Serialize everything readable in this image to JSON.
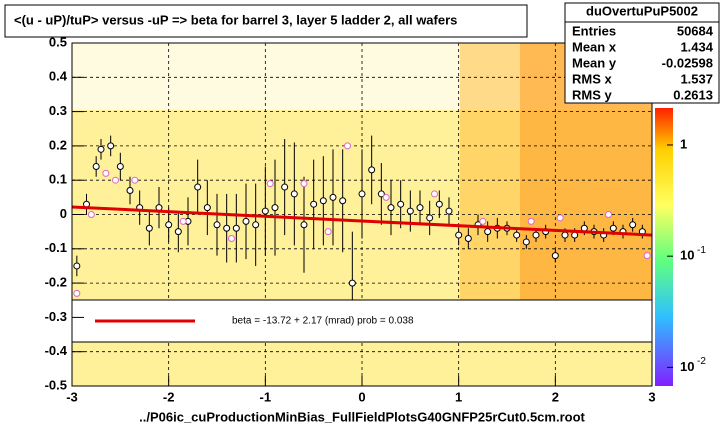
{
  "chart_data": {
    "type": "scatter",
    "title": "<(u - uP)/tuP> versus  -uP => beta for barrel 3, layer 5 ladder 2, all wafers",
    "x_label": "../P06ic_cuProductionMinBias_FullFieldPlotsG40GNFP25rCut0.5cm.root",
    "xlim": [
      -3,
      3
    ],
    "xticks": [
      -3,
      -2,
      -1,
      0,
      1,
      2,
      3
    ],
    "ylim": [
      -0.5,
      0.5
    ],
    "yticks": [
      -0.5,
      -0.4,
      -0.3,
      -0.2,
      -0.1,
      0,
      0.1,
      0.2,
      0.3,
      0.4,
      0.5
    ],
    "grid": true,
    "stats": {
      "name": "duOvertuPuP5002",
      "rows": [
        {
          "label": "Entries",
          "value": 50684
        },
        {
          "label": "Mean x",
          "value": 1.434
        },
        {
          "label": "Mean y",
          "value": -0.02598
        },
        {
          "label": "RMS x",
          "value": 1.537
        },
        {
          "label": "RMS y",
          "value": 0.2613
        }
      ]
    },
    "colorbar": {
      "log": true,
      "zlim": [
        0.0068,
        2.15
      ],
      "ticks": [
        {
          "value": 1,
          "label": "1"
        },
        {
          "value": 0.1,
          "label": "10",
          "exponent": "-1"
        },
        {
          "value": 0.01,
          "label": "10",
          "exponent": "-2"
        }
      ]
    },
    "fit": {
      "color": "#e00000",
      "label": "beta =  -13.72 +   2.17 (mrad) prob = 0.038",
      "x": [
        -3,
        3
      ],
      "y": [
        0.022,
        -0.06
      ]
    },
    "series": [
      {
        "color": "#000000",
        "x": [
          -2.95,
          -2.85,
          -2.75,
          -2.7,
          -2.6,
          -2.5,
          -2.4,
          -2.3,
          -2.2,
          -2.1,
          -2.0,
          -1.9,
          -1.8,
          -1.7,
          -1.6,
          -1.5,
          -1.4,
          -1.3,
          -1.2,
          -1.1,
          -1.0,
          -0.9,
          -0.8,
          -0.7,
          -0.6,
          -0.5,
          -0.4,
          -0.3,
          -0.2,
          -0.1,
          0.0,
          0.1,
          0.2,
          0.3,
          0.4,
          0.5,
          0.6,
          0.7,
          0.8,
          0.9,
          1.0,
          1.1,
          1.2,
          1.3,
          1.4,
          1.5,
          1.6,
          1.7,
          1.8,
          1.9,
          2.0,
          2.1,
          2.2,
          2.3,
          2.4,
          2.5,
          2.6,
          2.7,
          2.8,
          2.9
        ],
        "y": [
          -0.15,
          0.03,
          0.14,
          0.19,
          0.2,
          0.14,
          0.07,
          0.02,
          -0.04,
          0.02,
          -0.03,
          -0.05,
          -0.02,
          0.08,
          0.02,
          -0.03,
          -0.04,
          -0.04,
          -0.02,
          -0.03,
          0.01,
          0.02,
          0.08,
          0.06,
          -0.03,
          0.03,
          0.04,
          0.05,
          0.04,
          -0.2,
          0.06,
          0.13,
          0.06,
          0.02,
          0.03,
          0.01,
          0.02,
          -0.01,
          0.03,
          0.01,
          -0.06,
          -0.07,
          -0.03,
          -0.05,
          -0.04,
          -0.04,
          -0.06,
          -0.08,
          -0.06,
          -0.05,
          -0.12,
          -0.06,
          -0.06,
          -0.04,
          -0.05,
          -0.06,
          -0.04,
          -0.05,
          -0.03,
          -0.05
        ],
        "err": [
          0.03,
          0.03,
          0.03,
          0.03,
          0.03,
          0.04,
          0.04,
          0.05,
          0.05,
          0.06,
          0.05,
          0.06,
          0.07,
          0.08,
          0.08,
          0.09,
          0.1,
          0.1,
          0.11,
          0.12,
          0.13,
          0.14,
          0.14,
          0.15,
          0.14,
          0.13,
          0.13,
          0.14,
          0.15,
          0.15,
          0.13,
          0.1,
          0.09,
          0.08,
          0.07,
          0.06,
          0.05,
          0.05,
          0.04,
          0.04,
          0.03,
          0.03,
          0.03,
          0.03,
          0.03,
          0.02,
          0.02,
          0.02,
          0.02,
          0.02,
          0.02,
          0.02,
          0.02,
          0.02,
          0.02,
          0.02,
          0.02,
          0.02,
          0.02,
          0.02
        ]
      },
      {
        "color": "#dd66cc",
        "x": [
          -2.95,
          -2.8,
          -2.65,
          -2.55,
          -2.35,
          -1.85,
          -1.35,
          -0.95,
          -0.6,
          -0.35,
          -0.15,
          0.25,
          0.75,
          1.25,
          1.75,
          2.05,
          2.55,
          2.95
        ],
        "y": [
          -0.23,
          0.0,
          0.12,
          0.1,
          0.1,
          -0.02,
          -0.07,
          0.09,
          0.09,
          -0.05,
          0.2,
          0.05,
          0.06,
          -0.02,
          -0.02,
          -0.01,
          0.0,
          -0.12
        ]
      }
    ]
  }
}
